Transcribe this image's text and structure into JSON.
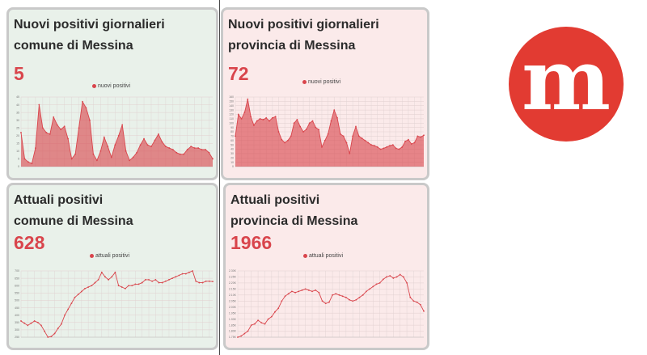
{
  "panels": [
    {
      "title_line1": "Nuovi positivi giornalieri",
      "title_line2": "comune di Messina",
      "value": "5",
      "legend": "nuovi positivi"
    },
    {
      "title_line1": "Nuovi positivi giornalieri",
      "title_line2": "provincia di Messina",
      "value": "72",
      "legend": "nuovi positivi"
    },
    {
      "title_line1": "Attuali positivi",
      "title_line2": "comune di Messina",
      "value": "628",
      "legend": "attuali positivi"
    },
    {
      "title_line1": "Attuali positivi",
      "title_line2": "provincia di Messina",
      "value": "1966",
      "legend": "attuali positivi"
    }
  ],
  "colors": {
    "accent": "#d9454c",
    "panel_green": "#e9f1ea",
    "panel_pink": "#fbeaea",
    "logo_red": "#e23b32"
  },
  "logo": {
    "letter": "m"
  },
  "chart_data": [
    {
      "type": "area",
      "series": [
        {
          "name": "nuovi positivi",
          "values": [
            22,
            5,
            3,
            2,
            12,
            40,
            25,
            22,
            21,
            32,
            27,
            24,
            26,
            18,
            5,
            8,
            25,
            42,
            38,
            30,
            8,
            4,
            10,
            19,
            13,
            6,
            14,
            20,
            27,
            10,
            4,
            6,
            9,
            14,
            18,
            14,
            13,
            17,
            21,
            16,
            13,
            12,
            11,
            9,
            8,
            8,
            11,
            13,
            12,
            12,
            11,
            11,
            9,
            5
          ]
        }
      ],
      "ylim": [
        0,
        45
      ],
      "yticks": [
        "0",
        "5",
        "10",
        "15",
        "20",
        "25",
        "30",
        "35",
        "40",
        "45"
      ],
      "grid": true,
      "legend_position": "top-center"
    },
    {
      "type": "area",
      "series": [
        {
          "name": "nuovi positivi",
          "values": [
            70,
            120,
            110,
            125,
            155,
            115,
            95,
            105,
            110,
            108,
            112,
            105,
            112,
            115,
            80,
            62,
            55,
            60,
            70,
            100,
            108,
            92,
            80,
            86,
            100,
            105,
            90,
            85,
            45,
            60,
            75,
            105,
            130,
            112,
            75,
            70,
            55,
            30,
            70,
            92,
            70,
            65,
            60,
            55,
            50,
            48,
            45,
            40,
            42,
            45,
            48,
            50,
            42,
            40,
            45,
            58,
            62,
            52,
            55,
            70,
            68,
            72
          ]
        }
      ],
      "ylim": [
        0,
        160
      ],
      "yticks": [
        "0",
        "10",
        "20",
        "30",
        "40",
        "50",
        "60",
        "70",
        "80",
        "90",
        "100",
        "110",
        "120",
        "130",
        "140",
        "150",
        "160"
      ],
      "grid": true,
      "legend_position": "top-center"
    },
    {
      "type": "line",
      "series": [
        {
          "name": "attuali positivi",
          "values": [
            360,
            345,
            330,
            345,
            360,
            350,
            330,
            290,
            250,
            255,
            275,
            310,
            340,
            400,
            440,
            480,
            520,
            540,
            560,
            580,
            590,
            600,
            620,
            640,
            690,
            660,
            640,
            660,
            690,
            600,
            590,
            580,
            600,
            600,
            610,
            610,
            620,
            640,
            640,
            630,
            640,
            620,
            620,
            630,
            640,
            650,
            660,
            670,
            680,
            680,
            690,
            700,
            630,
            620,
            620,
            630,
            630,
            628
          ]
        }
      ],
      "ylim": [
        250,
        700
      ],
      "yticks": [
        "250",
        "300",
        "350",
        "400",
        "450",
        "500",
        "550",
        "600",
        "650",
        "700"
      ],
      "grid": true,
      "legend_position": "top-center"
    },
    {
      "type": "line",
      "series": [
        {
          "name": "attuali positivi",
          "values": [
            1750,
            1760,
            1780,
            1800,
            1850,
            1860,
            1890,
            1870,
            1860,
            1900,
            1920,
            1960,
            1990,
            2050,
            2090,
            2110,
            2130,
            2120,
            2130,
            2140,
            2150,
            2140,
            2130,
            2140,
            2120,
            2050,
            2030,
            2040,
            2100,
            2110,
            2100,
            2090,
            2080,
            2060,
            2050,
            2060,
            2080,
            2100,
            2130,
            2150,
            2170,
            2190,
            2200,
            2230,
            2250,
            2260,
            2240,
            2250,
            2270,
            2250,
            2200,
            2080,
            2050,
            2040,
            2020,
            1966
          ]
        }
      ],
      "ylim": [
        1750,
        2300
      ],
      "yticks": [
        "1.75K",
        "1.80K",
        "1.85K",
        "1.90K",
        "1.95K",
        "2.00K",
        "2.05K",
        "2.10K",
        "2.15K",
        "2.20K",
        "2.25K",
        "2.30K"
      ],
      "grid": true,
      "legend_position": "top-center"
    }
  ]
}
